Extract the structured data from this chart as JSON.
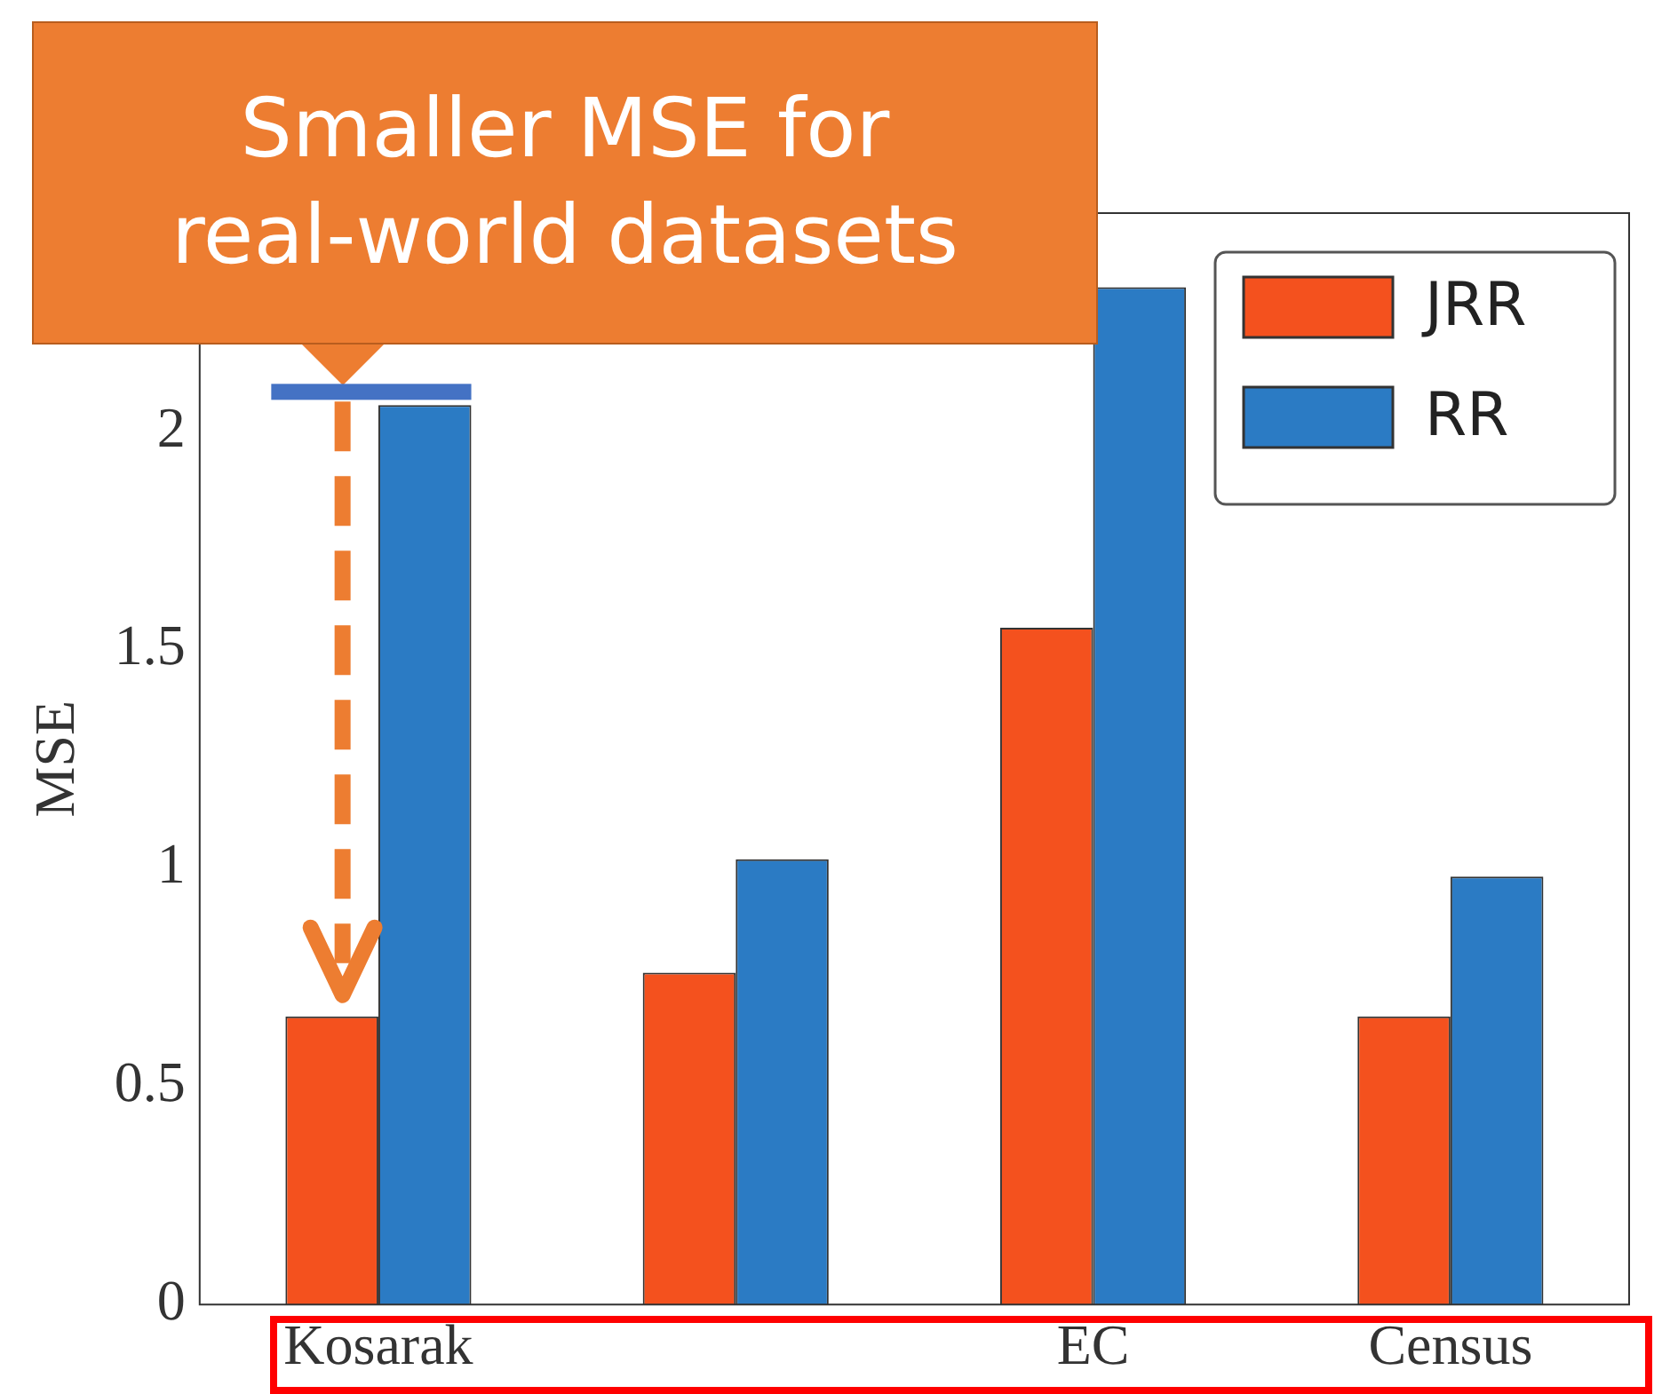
{
  "chart_data": {
    "type": "bar",
    "ylabel": "MSE",
    "categories": [
      "Kosarak",
      null,
      "EC",
      "Census"
    ],
    "series": [
      {
        "name": "JRR",
        "color": "#f4511e",
        "values": [
          0.66,
          0.76,
          1.55,
          0.66
        ]
      },
      {
        "name": "RR",
        "color": "#2b7bc4",
        "values": [
          2.06,
          1.02,
          2.33,
          0.98
        ]
      }
    ],
    "ylim": [
      0,
      2.5
    ],
    "yticks": [
      0,
      0.5,
      1,
      1.5,
      2
    ],
    "grid": false,
    "legend": "top right",
    "annotations": [
      "Smaller MSE for real-world datasets"
    ]
  }
}
